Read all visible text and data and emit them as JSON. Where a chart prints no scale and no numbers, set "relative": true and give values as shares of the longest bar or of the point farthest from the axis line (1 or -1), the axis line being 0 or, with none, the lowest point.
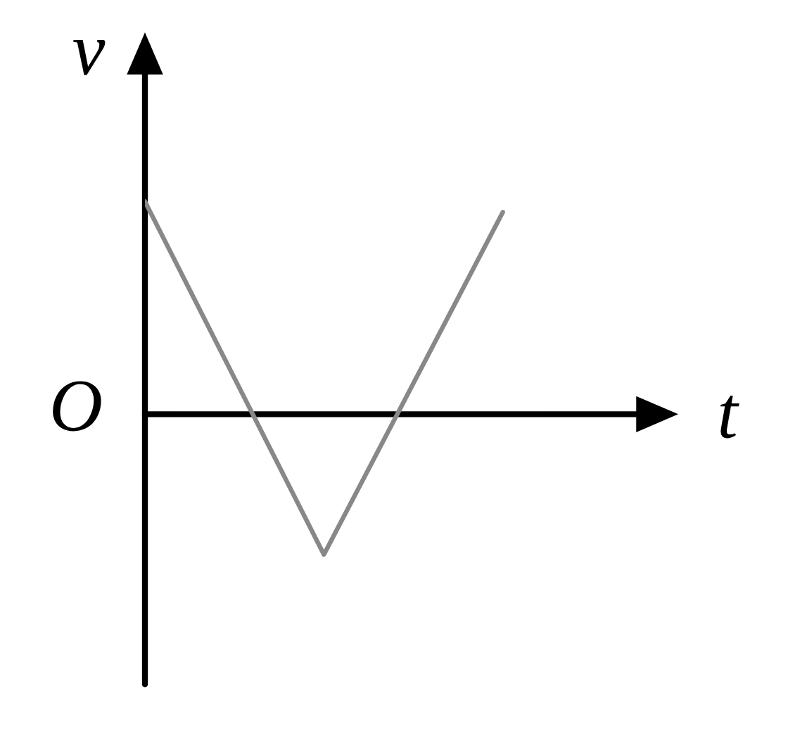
{
  "chart_data": {
    "type": "line",
    "xlabel": "t",
    "ylabel": "v",
    "annotations": [
      "O"
    ],
    "categories": [
      null,
      null,
      null
    ],
    "series": [
      {
        "color": "#888888",
        "values": [
          1,
          -0.66,
          0.95
        ]
      }
    ],
    "relative": true
  }
}
